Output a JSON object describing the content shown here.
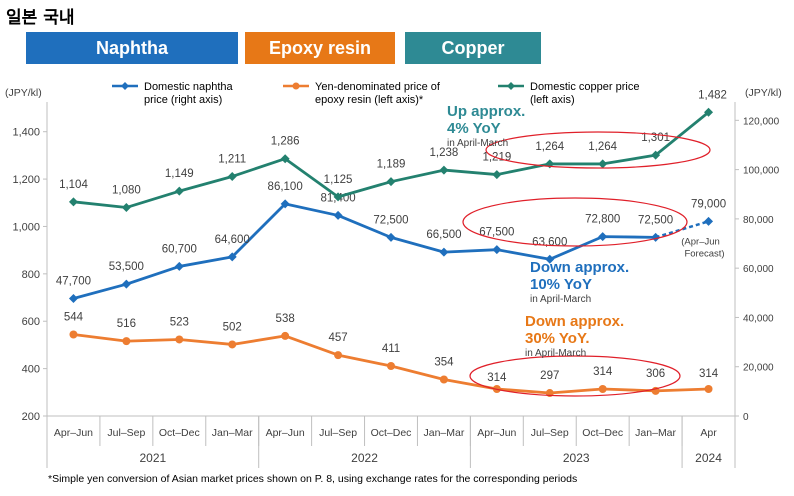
{
  "page_title": "일본 국내",
  "tabs": [
    {
      "label": "Naphtha",
      "color": "#1f6fbd"
    },
    {
      "label": "Epoxy resin",
      "color": "#e77817"
    },
    {
      "label": "Copper",
      "color": "#2e8a94"
    }
  ],
  "footnote": "*Simple yen conversion of Asian market prices shown on P. 8, using exchange rates for the corresponding periods",
  "chart_data": {
    "type": "line",
    "x": [
      "Apr–Jun",
      "Jul–Sep",
      "Oct–Dec",
      "Jan–Mar",
      "Apr–Jun",
      "Jul–Sep",
      "Oct–Dec",
      "Jan–Mar",
      "Apr–Jun",
      "Jul–Sep",
      "Oct–Dec",
      "Jan–Mar",
      "Apr"
    ],
    "years": [
      {
        "label": "2021"
      },
      {
        "label": "2022"
      },
      {
        "label": "2023"
      },
      {
        "label": "2024"
      }
    ],
    "left_axis": {
      "label": "(JPY/kl)",
      "ylim": [
        200,
        1500
      ],
      "ticks": [
        "200",
        "400",
        "600",
        "800",
        "1,000",
        "1,200",
        "1,400"
      ]
    },
    "right_axis": {
      "label": "(JPY/kl)",
      "ylim": [
        0,
        125000
      ],
      "ticks": [
        "0",
        "20,000",
        "40,000",
        "60,000",
        "80,000",
        "100,000",
        "120,000"
      ]
    },
    "series": [
      {
        "name": "Domestic naphtha price (right axis)",
        "legend_lines": [
          "Domestic naphtha",
          "price (right axis)"
        ],
        "axis": "right",
        "color": "#1f6fbd",
        "values": [
          47700,
          53500,
          60700,
          64600,
          86100,
          81400,
          72500,
          66500,
          67500,
          63600,
          72800,
          72500,
          null
        ],
        "labels": [
          "47,700",
          "53,500",
          "60,700",
          "64,600",
          "86,100",
          "81,400",
          "72,500",
          "66,500",
          "67,500",
          "63,600",
          "72,800",
          "72,500",
          ""
        ],
        "forecast": {
          "x_index": 12,
          "value": 79000,
          "label": "79,000",
          "note_lines": [
            "(Apr–Jun",
            "Forecast)"
          ]
        }
      },
      {
        "name": "Yen-denominated price of epoxy resin (left axis)*",
        "legend_lines": [
          "Yen-denominated price of",
          "epoxy resin (left axis)*"
        ],
        "axis": "left",
        "color": "#ed7d31",
        "values": [
          544,
          516,
          523,
          502,
          538,
          457,
          411,
          354,
          314,
          297,
          314,
          306,
          314
        ],
        "labels": [
          "544",
          "516",
          "523",
          "502",
          "538",
          "457",
          "411",
          "354",
          "314",
          "297",
          "314",
          "306",
          "314"
        ]
      },
      {
        "name": "Domestic copper price (left axis)",
        "legend_lines": [
          "Domestic copper price",
          "(left axis)"
        ],
        "axis": "left",
        "color": "#23816f",
        "values": [
          1104,
          1080,
          1149,
          1211,
          1286,
          1125,
          1189,
          1238,
          1219,
          1264,
          1264,
          1301,
          1482
        ],
        "labels": [
          "1,104",
          "1,080",
          "1,149",
          "1,211",
          "1,286",
          "1,125",
          "1,189",
          "1,238",
          "1,219",
          "1,264",
          "1,264",
          "1,301",
          "1,482"
        ]
      }
    ],
    "annotations": [
      {
        "name": "copper",
        "title_lines": [
          "Up approx.",
          "4% YoY"
        ],
        "sub": "in April-March",
        "color": "#2e8a94"
      },
      {
        "name": "naphtha",
        "title_lines": [
          "Down approx.",
          "10% YoY"
        ],
        "sub": "in April-March",
        "color": "#1f6fbd"
      },
      {
        "name": "epoxy",
        "title_lines": [
          "Down approx.",
          "30% YoY."
        ],
        "sub": "in April-March",
        "color": "#e77817"
      }
    ]
  }
}
